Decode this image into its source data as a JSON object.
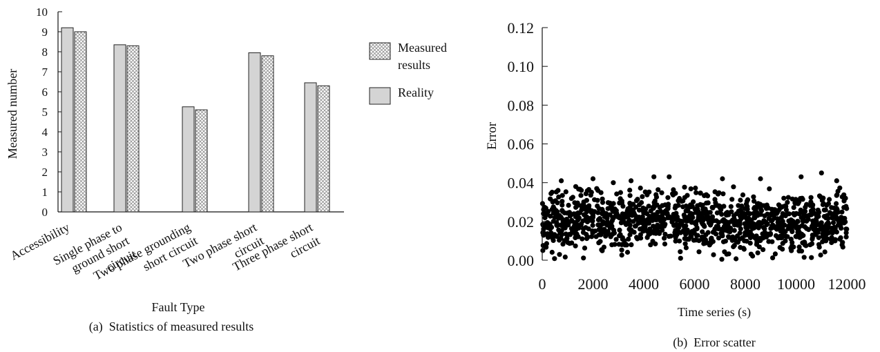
{
  "chart_data": [
    {
      "type": "bar",
      "caption": "(a)  Statistics of measured results",
      "xlabel": "Fault Type",
      "ylabel": "Measured number",
      "ylim": [
        0,
        10
      ],
      "yticks": [
        0,
        1,
        2,
        3,
        4,
        5,
        6,
        7,
        8,
        9,
        10
      ],
      "categories": [
        "Accessibility",
        "Single phase to ground short circuit",
        "Two phase grounding short circuit",
        "Two phase short circuit",
        "Three phase short circuit"
      ],
      "category_label_lines": [
        [
          "Accessibility"
        ],
        [
          "Single phase to",
          "ground short",
          "circuit"
        ],
        [
          "Two phase grounding",
          "short circuit"
        ],
        [
          "Two phase short",
          "circuit"
        ],
        [
          "Three phase short",
          "circuit"
        ]
      ],
      "series": [
        {
          "name": "Reality",
          "values": [
            9.2,
            8.35,
            5.25,
            7.95,
            6.45
          ],
          "fill": "#d4d4d4"
        },
        {
          "name": "Measured results",
          "values": [
            9.0,
            8.3,
            5.1,
            7.8,
            6.3
          ],
          "fill": "crosshatch"
        }
      ],
      "legend": {
        "position": "right",
        "entries": [
          {
            "lines": [
              "Measured",
              "results"
            ],
            "series": "Measured results"
          },
          {
            "lines": [
              "Reality"
            ],
            "series": "Reality"
          }
        ]
      }
    },
    {
      "type": "scatter",
      "caption": "(b)  Error scatter",
      "xlabel": "Time series (s)",
      "ylabel": "Error",
      "xlim": [
        0,
        12000
      ],
      "ylim": [
        0,
        0.12
      ],
      "xticks": [
        "0",
        "2000",
        "4000",
        "6000",
        "8000",
        "10000",
        "12000"
      ],
      "yticks": [
        "0.00",
        "0.02",
        "0.04",
        "0.06",
        "0.08",
        "0.10",
        "0.12"
      ],
      "x_range": [
        0,
        12000
      ],
      "y_range": [
        0.0,
        0.046
      ],
      "y_center": 0.02,
      "point_count": 1200,
      "point_color": "#000000",
      "outliers": [
        {
          "x": 750,
          "y": 0.041
        },
        {
          "x": 2000,
          "y": 0.042
        },
        {
          "x": 4400,
          "y": 0.043
        },
        {
          "x": 5000,
          "y": 0.043
        },
        {
          "x": 7100,
          "y": 0.042
        },
        {
          "x": 8600,
          "y": 0.042
        },
        {
          "x": 10200,
          "y": 0.043
        },
        {
          "x": 11000,
          "y": 0.045
        },
        {
          "x": 11600,
          "y": 0.041
        },
        {
          "x": 3500,
          "y": 0.041
        },
        {
          "x": 2800,
          "y": 0.04
        }
      ]
    }
  ]
}
